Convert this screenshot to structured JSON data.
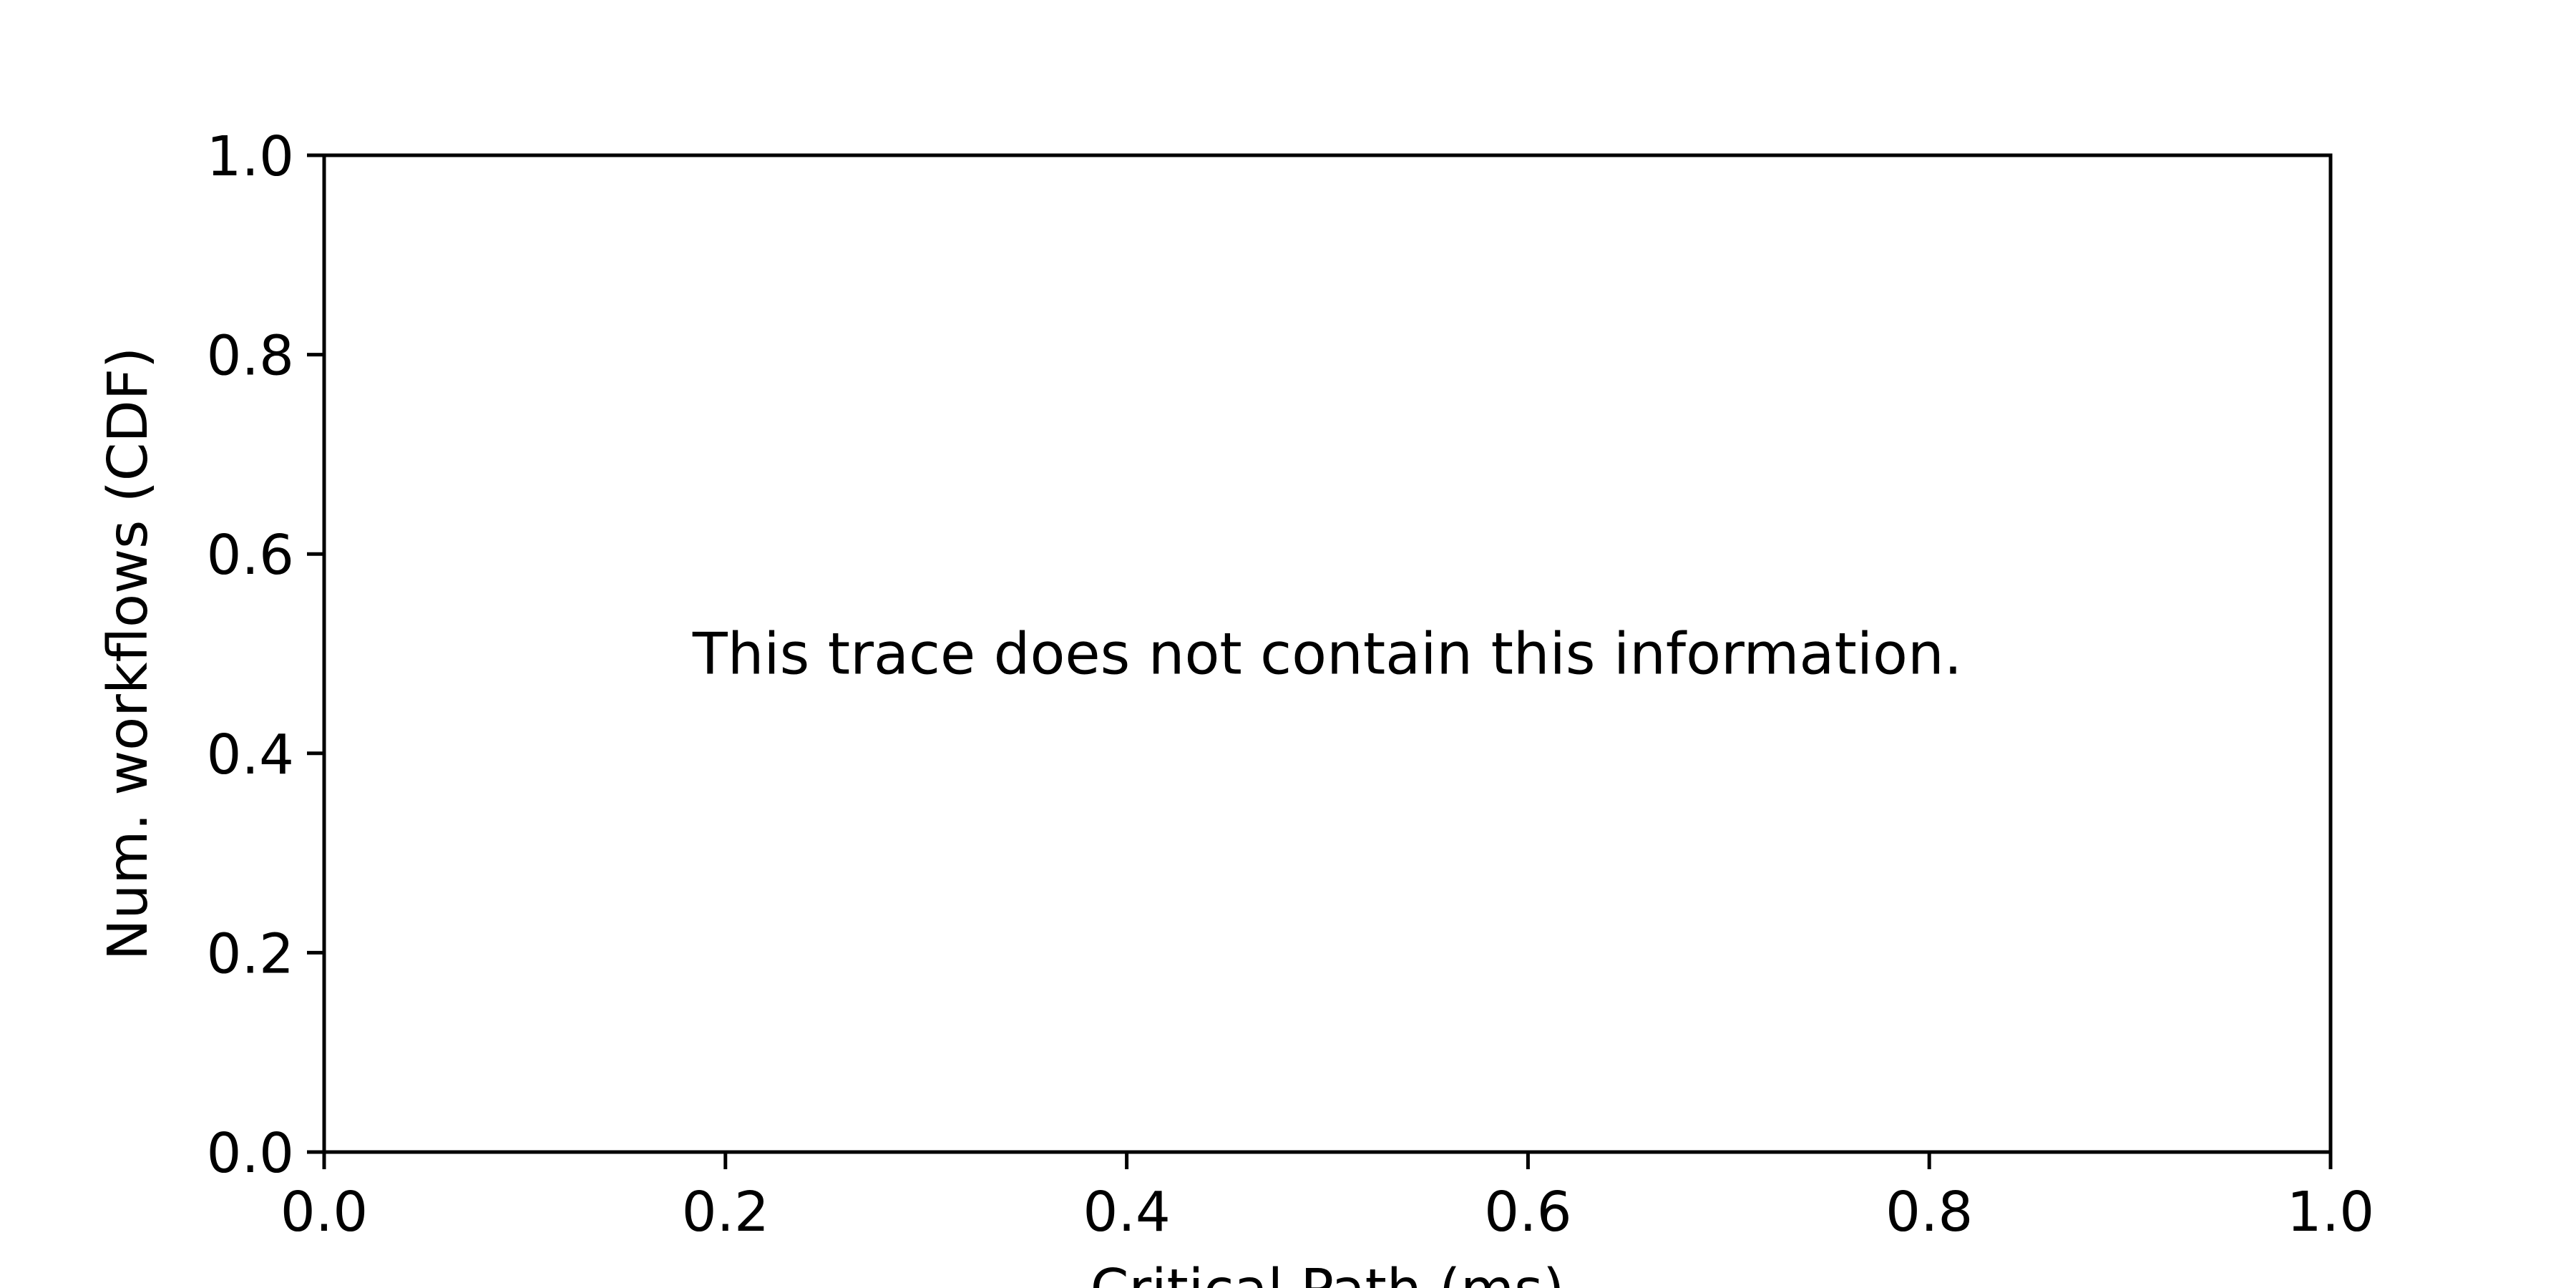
{
  "chart_data": {
    "type": "line",
    "title": "",
    "xlabel": "Critical Path (ms)",
    "ylabel": "Num. workflows (CDF)",
    "xlim": [
      0.0,
      1.0
    ],
    "ylim": [
      0.0,
      1.0
    ],
    "xticks": [
      "0.0",
      "0.2",
      "0.4",
      "0.6",
      "0.8",
      "1.0"
    ],
    "yticks": [
      "0.0",
      "0.2",
      "0.4",
      "0.6",
      "0.8",
      "1.0"
    ],
    "series": [],
    "grid": false,
    "legend": "none",
    "annotation": "This trace does not contain this information."
  }
}
